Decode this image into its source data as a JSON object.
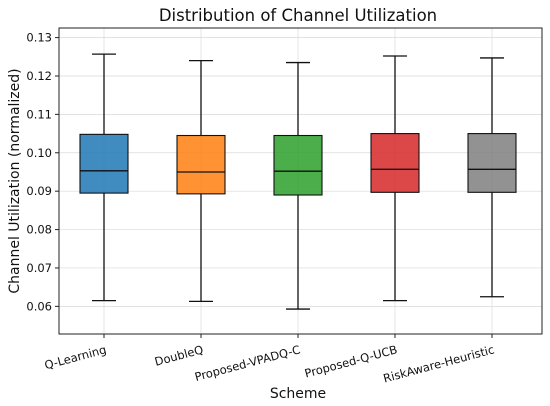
{
  "chart_data": {
    "type": "box",
    "title": "Distribution of Channel Utilization",
    "xlabel": "Scheme",
    "ylabel": "Channel Utilization (normalized)",
    "ylim": [
      0.0528,
      0.1325
    ],
    "yticks": [
      0.06,
      0.07,
      0.08,
      0.09,
      0.1,
      0.11,
      0.12,
      0.13
    ],
    "ytick_labels": [
      "0.06",
      "0.07",
      "0.08",
      "0.09",
      "0.10",
      "0.11",
      "0.12",
      "0.13"
    ],
    "grid": true,
    "categories": [
      "Q-Learning",
      "DoubleQ",
      "Proposed-VPADQ-C",
      "Proposed-Q-UCB",
      "RiskAware-Heuristic"
    ],
    "series": [
      {
        "color": "#1f77b4",
        "whisker_low": 0.0615,
        "q1": 0.0895,
        "median": 0.0953,
        "q3": 0.1048,
        "whisker_high": 0.1257
      },
      {
        "color": "#ff7f0e",
        "whisker_low": 0.0613,
        "q1": 0.0893,
        "median": 0.095,
        "q3": 0.1045,
        "whisker_high": 0.124
      },
      {
        "color": "#2ca02c",
        "whisker_low": 0.0593,
        "q1": 0.089,
        "median": 0.0952,
        "q3": 0.1045,
        "whisker_high": 0.1235
      },
      {
        "color": "#d62728",
        "whisker_low": 0.0615,
        "q1": 0.0897,
        "median": 0.0957,
        "q3": 0.105,
        "whisker_high": 0.1252
      },
      {
        "color": "#7f7f7f",
        "whisker_low": 0.0625,
        "q1": 0.0897,
        "median": 0.0957,
        "q3": 0.105,
        "whisker_high": 0.1247
      }
    ]
  }
}
